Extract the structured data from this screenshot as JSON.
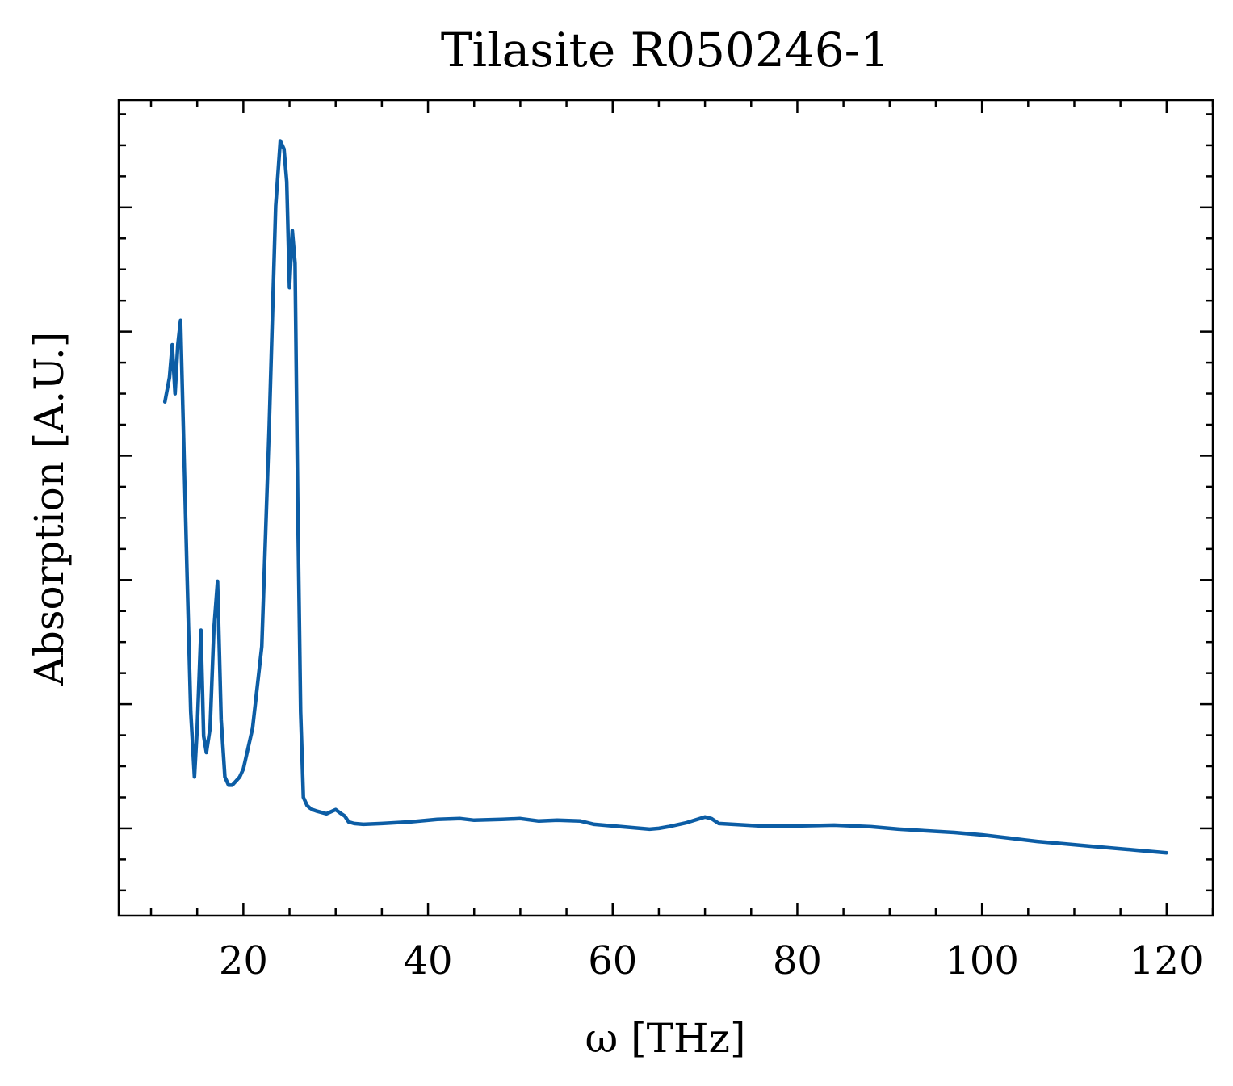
{
  "chart_data": {
    "type": "line",
    "title": "Tilasite R050246-1",
    "xlabel": "ω [THz]",
    "ylabel": "Absorption [A.U.]",
    "xlim": [
      6.5,
      125
    ],
    "ylim": [
      0,
      1
    ],
    "x_ticks": [
      20,
      40,
      60,
      80,
      100,
      120
    ],
    "x_tick_labels": [
      "20",
      "40",
      "60",
      "80",
      "100",
      "120"
    ],
    "y_tick_labels_shown": false,
    "grid": false,
    "legend": "none",
    "colors": {
      "line": "#0c5da5",
      "axes": "#000000",
      "background": "#ffffff"
    },
    "series": [
      {
        "x": [
          11.5,
          12.0,
          12.3,
          12.6,
          12.9,
          13.2,
          13.5,
          13.9,
          14.3,
          14.7,
          15.0,
          15.4,
          15.7,
          16.0,
          16.4,
          16.8,
          17.2,
          17.6,
          18.0,
          18.4,
          18.8,
          19.2,
          19.6,
          20.0,
          21.0,
          22.0,
          22.8,
          23.5,
          24.0,
          24.4,
          24.7,
          25.0,
          25.3,
          25.6,
          25.9,
          26.2,
          26.5,
          26.9,
          27.2,
          27.5,
          28.0,
          29.0,
          30.0,
          30.6,
          31.0,
          31.4,
          32.0,
          33.0,
          35.0,
          38.0,
          41.0,
          43.5,
          45.0,
          48.0,
          50.0,
          52.0,
          54.0,
          56.5,
          58.0,
          60.0,
          62.0,
          64.0,
          65.0,
          66.0,
          68.0,
          70.0,
          70.7,
          71.5,
          73.0,
          76.0,
          80.0,
          84.0,
          88.0,
          91.0,
          94.0,
          97.0,
          100.0,
          103.0,
          106.0,
          109.0,
          112.0,
          115.0,
          117.0,
          119.0,
          120.0
        ],
        "y": [
          0.63,
          0.66,
          0.7,
          0.64,
          0.7,
          0.73,
          0.6,
          0.42,
          0.25,
          0.17,
          0.23,
          0.35,
          0.22,
          0.2,
          0.23,
          0.35,
          0.41,
          0.24,
          0.17,
          0.16,
          0.16,
          0.165,
          0.17,
          0.18,
          0.23,
          0.33,
          0.6,
          0.87,
          0.95,
          0.94,
          0.9,
          0.77,
          0.84,
          0.8,
          0.5,
          0.25,
          0.145,
          0.135,
          0.132,
          0.13,
          0.128,
          0.125,
          0.13,
          0.125,
          0.122,
          0.115,
          0.113,
          0.112,
          0.113,
          0.115,
          0.118,
          0.119,
          0.117,
          0.118,
          0.119,
          0.116,
          0.117,
          0.116,
          0.112,
          0.11,
          0.108,
          0.106,
          0.107,
          0.109,
          0.114,
          0.121,
          0.119,
          0.113,
          0.112,
          0.11,
          0.11,
          0.111,
          0.109,
          0.106,
          0.104,
          0.102,
          0.099,
          0.095,
          0.091,
          0.088,
          0.085,
          0.082,
          0.08,
          0.078,
          0.077
        ]
      }
    ]
  }
}
